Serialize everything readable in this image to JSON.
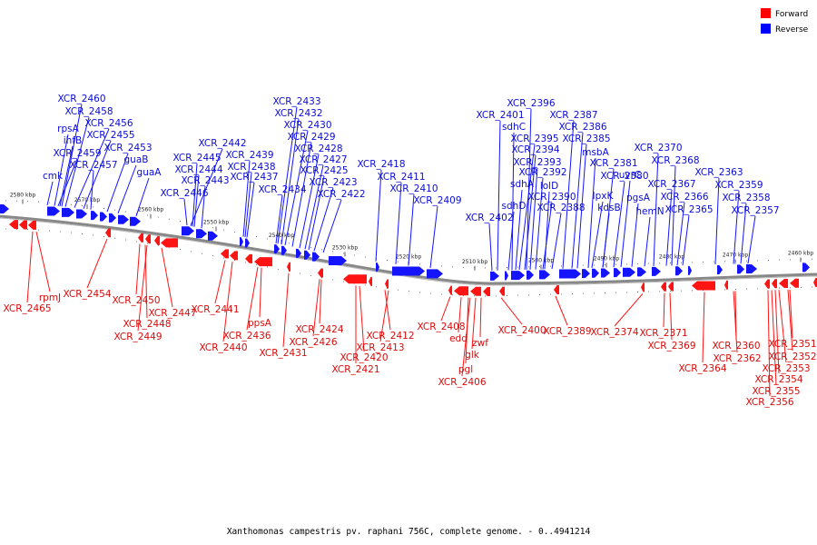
{
  "legend": {
    "forward_label": "Forward",
    "reverse_label": "Reverse",
    "forward_color": "#ff0000",
    "reverse_color": "#0000ff"
  },
  "footer": "Xanthomonas campestris pv. raphani 756C, complete genome. - 0..4941214",
  "scale": {
    "ticks": [
      "2580 kbp",
      "2570 kbp",
      "2560 kbp",
      "2550 kbp",
      "2540 kbp",
      "2530 kbp",
      "2520 kbp",
      "2510 kbp",
      "2500 kbp",
      "2490 kbp",
      "2480 kbp",
      "2470 kbp",
      "2460 kbp"
    ]
  },
  "reverse_labels": [
    "XCR_2460",
    "XCR_2458",
    "rpsA",
    "XCR_2456",
    "ihfB",
    "XCR_2455",
    "XCR_2459",
    "XCR_2453",
    "XCR_2457",
    "guaB",
    "cmk",
    "guaA",
    "XCR_2442",
    "XCR_2445",
    "XCR_2444",
    "XCR_2443",
    "XCR_2446",
    "XCR_2439",
    "XCR_2438",
    "XCR_2437",
    "XCR_2434",
    "XCR_2433",
    "XCR_2432",
    "XCR_2430",
    "XCR_2429",
    "XCR_2428",
    "XCR_2427",
    "XCR_2425",
    "XCR_2423",
    "XCR_2422",
    "XCR_2418",
    "XCR_2411",
    "XCR_2410",
    "XCR_2409",
    "XCR_2396",
    "XCR_2401",
    "XCR_2387",
    "sdhC",
    "XCR_2386",
    "XCR_2395",
    "XCR_2385",
    "XCR_2394",
    "msbA",
    "XCR_2393",
    "XCR_2392",
    "sdhA",
    "lolD",
    "XCR_2390",
    "sdhD",
    "XCR_2388",
    "XCR_2402",
    "XCR_2370",
    "XCR_2381",
    "XCR_2368",
    "uvrC",
    "XCR_2380",
    "lpxK",
    "pgsA",
    "kdsB",
    "hemN",
    "XCR_2367",
    "XCR_2366",
    "XCR_2365",
    "XCR_2363",
    "XCR_2359",
    "XCR_2358",
    "XCR_2357"
  ],
  "forward_labels": [
    "rpmJ",
    "XCR_2465",
    "XCR_2454",
    "XCR_2450",
    "XCR_2447",
    "XCR_2448",
    "XCR_2449",
    "XCR_2441",
    "XCR_2440",
    "ppsA",
    "XCR_2436",
    "XCR_2431",
    "XCR_2424",
    "XCR_2426",
    "XCR_2421",
    "XCR_2420",
    "XCR_2412",
    "XCR_2413",
    "XCR_2408",
    "edd",
    "zwf",
    "glk",
    "pgl",
    "XCR_2406",
    "XCR_2400",
    "XCR_2389",
    "XCR_2374",
    "XCR_2371",
    "XCR_2369",
    "XCR_2364",
    "XCR_2360",
    "XCR_2362",
    "XCR_2351",
    "XCR_2352",
    "XCR_2353",
    "XCR_2354",
    "XCR_2355",
    "XCR_2356"
  ]
}
